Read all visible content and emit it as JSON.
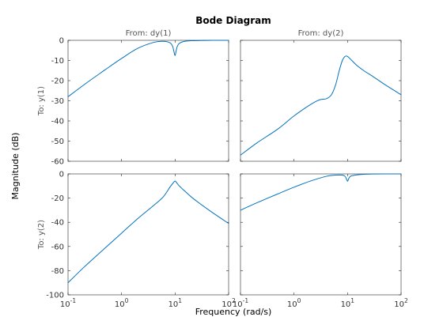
{
  "figure": {
    "title": "Bode Diagram",
    "xlabel": "Frequency  (rad/s)",
    "ylabel": "Magnitude (dB)"
  },
  "chart_data": [
    {
      "type": "line",
      "panel": "row1-col1",
      "from_label": "From: dy(1)",
      "to_label": "To: y(1)",
      "xscale": "log",
      "xlim": [
        0.1,
        100
      ],
      "ylim": [
        -60,
        0
      ],
      "yticks": [
        0,
        -10,
        -20,
        -30,
        -40,
        -50,
        -60
      ],
      "color": "#0072BD",
      "x": [
        0.1,
        0.2,
        0.5,
        1,
        2,
        4,
        6,
        8,
        9,
        9.5,
        10,
        10.5,
        11,
        12,
        15,
        20,
        30,
        50,
        100
      ],
      "y": [
        -28,
        -22,
        -14.5,
        -9,
        -4,
        -1,
        -0.5,
        -1.2,
        -3,
        -5.5,
        -7.5,
        -5,
        -3,
        -1.5,
        -0.5,
        -0.2,
        -0.1,
        0,
        0
      ]
    },
    {
      "type": "line",
      "panel": "row1-col2",
      "from_label": "From: dy(2)",
      "to_label": "",
      "xscale": "log",
      "xlim": [
        0.1,
        100
      ],
      "ylim": [
        -60,
        0
      ],
      "yticks": [
        0,
        -10,
        -20,
        -30,
        -40,
        -50,
        -60
      ],
      "color": "#0072BD",
      "x": [
        0.1,
        0.2,
        0.5,
        1,
        2,
        3,
        4,
        5,
        6,
        7,
        8,
        9,
        10,
        12,
        15,
        20,
        30,
        50,
        100
      ],
      "y": [
        -57,
        -51,
        -44,
        -37.5,
        -32,
        -29.5,
        -29,
        -27,
        -22,
        -15,
        -10,
        -8,
        -8,
        -10,
        -12.5,
        -15,
        -18,
        -22,
        -27
      ]
    },
    {
      "type": "line",
      "panel": "row2-col1",
      "from_label": "",
      "to_label": "To: y(2)",
      "xscale": "log",
      "xlim": [
        0.1,
        100
      ],
      "xticks": [
        "10-1",
        "100",
        "101",
        "102"
      ],
      "ylim": [
        -100,
        0
      ],
      "yticks": [
        0,
        -20,
        -40,
        -60,
        -80,
        -100
      ],
      "color": "#0072BD",
      "x": [
        0.1,
        0.2,
        0.5,
        1,
        2,
        4,
        6,
        8,
        9,
        10,
        11,
        12,
        15,
        20,
        30,
        50,
        100
      ],
      "y": [
        -90,
        -77,
        -61,
        -49,
        -37,
        -26,
        -19,
        -11,
        -8,
        -6,
        -8,
        -10,
        -14,
        -19,
        -25,
        -32,
        -41
      ]
    },
    {
      "type": "line",
      "panel": "row2-col2",
      "from_label": "",
      "to_label": "",
      "xscale": "log",
      "xlim": [
        0.1,
        100
      ],
      "xticks": [
        "10-1",
        "100",
        "101",
        "102"
      ],
      "ylim": [
        -100,
        0
      ],
      "yticks": [
        0,
        -20,
        -40,
        -60,
        -80,
        -100
      ],
      "color": "#0072BD",
      "x": [
        0.1,
        0.2,
        0.5,
        1,
        2,
        4,
        6,
        8,
        9,
        9.5,
        10,
        10.5,
        11,
        12,
        15,
        20,
        30,
        50,
        100
      ],
      "y": [
        -30,
        -24,
        -16.5,
        -11,
        -6,
        -2,
        -1,
        -1,
        -2,
        -4,
        -6,
        -4,
        -2.5,
        -1.5,
        -0.8,
        -0.3,
        -0.1,
        0,
        0
      ]
    }
  ]
}
